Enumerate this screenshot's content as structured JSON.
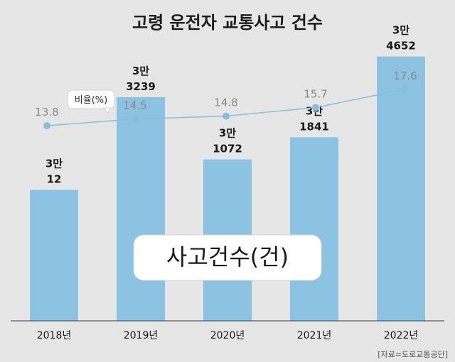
{
  "chart_data": {
    "type": "bar",
    "title": "고령 운전자 교통사고 건수",
    "categories": [
      "2018년",
      "2019년",
      "2020년",
      "2021년",
      "2022년"
    ],
    "series": [
      {
        "name": "사고건수(건)",
        "values": [
          30012,
          33239,
          31072,
          31841,
          34652
        ],
        "labels_top": [
          "3만",
          "3만",
          "3만",
          "3만",
          "3만"
        ],
        "labels_bottom": [
          "12",
          "3239",
          "1072",
          "1841",
          "4652"
        ],
        "color": "#8cc3e2"
      },
      {
        "name": "비율(%)",
        "type": "line",
        "values": [
          13.8,
          14.5,
          14.8,
          15.7,
          17.6
        ],
        "labels": [
          "13.8",
          "14.5",
          "14.8",
          "15.7",
          "17.6"
        ],
        "color": "#86bfdf"
      }
    ],
    "source": "[자료=도로교통공단]",
    "grid": false
  }
}
